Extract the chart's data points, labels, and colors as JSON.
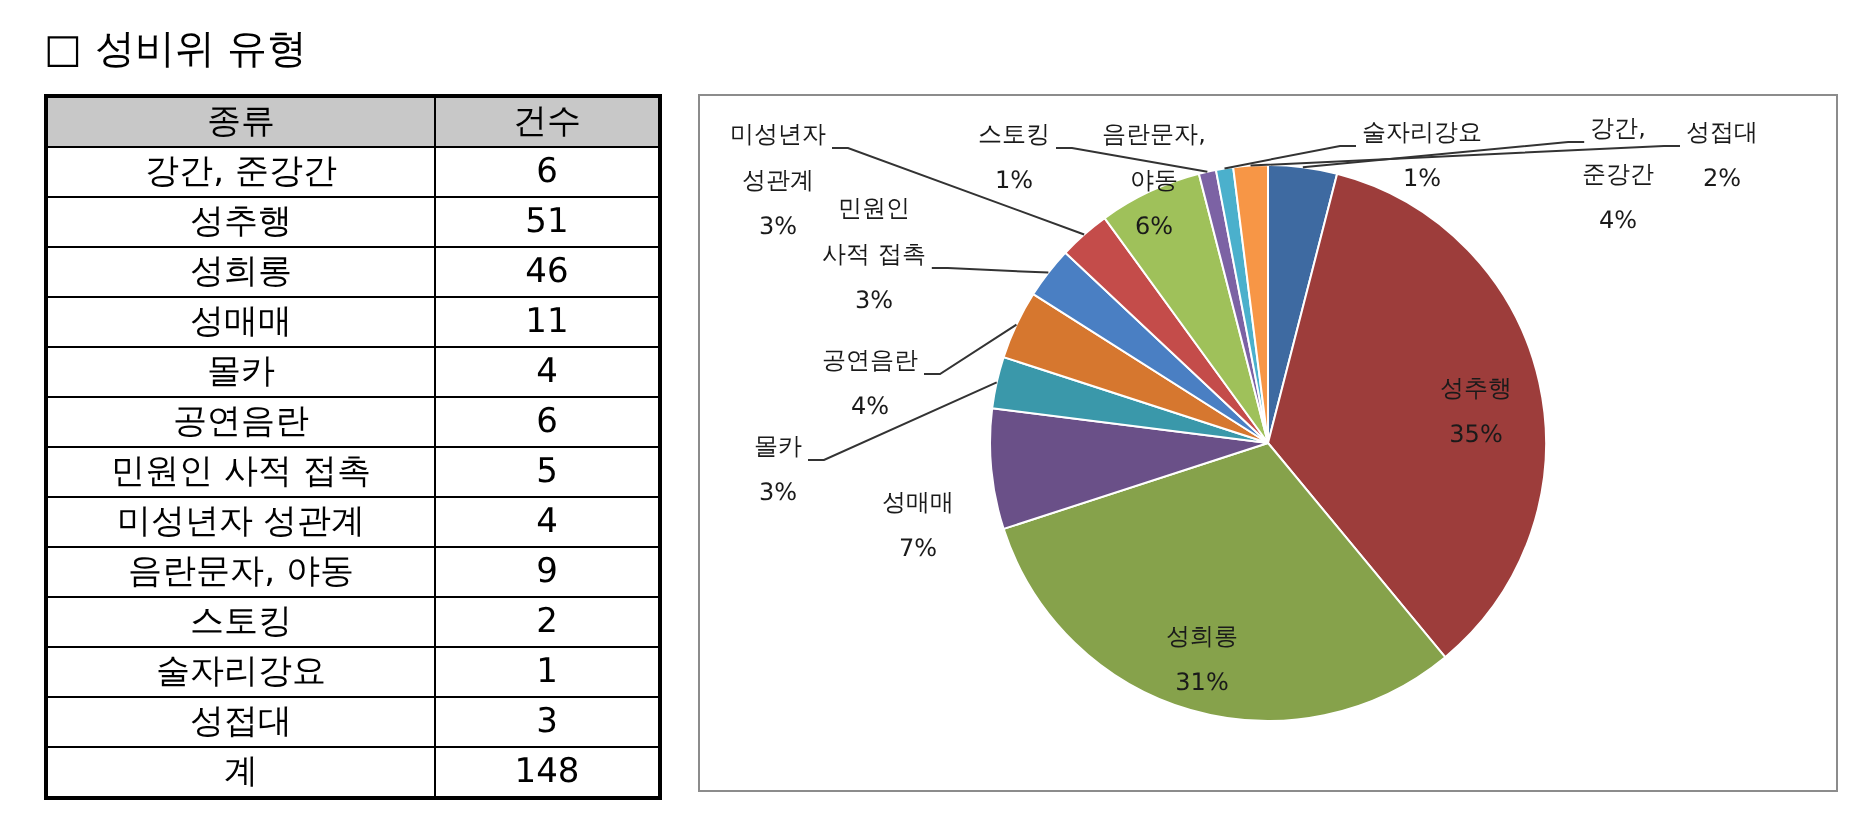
{
  "chart_data": [
    {
      "type": "other",
      "title": "□ 성비위 유형",
      "categories": [
        "강간, 준강간",
        "성추행",
        "성희롱",
        "성매매",
        "몰카",
        "공연음란",
        "민원인 사적 접촉",
        "미성년자 성관계",
        "음란문자, 야동",
        "스토킹",
        "술자리강요",
        "성접대"
      ],
      "values": [
        6,
        51,
        46,
        11,
        4,
        6,
        5,
        4,
        9,
        2,
        1,
        3
      ],
      "data_labels": true,
      "totals": [
        "148"
      ],
      "annotations": [
        "종류",
        "건수",
        "계"
      ]
    },
    {
      "type": "pie",
      "categories": [
        "강간, 준강간",
        "성추행",
        "성희롱",
        "성매매",
        "몰카",
        "공연음란",
        "민원인 사적 접촉",
        "미성년자 성관계",
        "음란문자, 야동",
        "스토킹",
        "술자리강요",
        "성접대"
      ],
      "values": [
        4,
        35,
        31,
        7,
        3,
        4,
        3,
        3,
        6,
        1,
        1,
        2
      ],
      "colors": [
        "#3e6aa1",
        "#9d3d3b",
        "#86a24b",
        "#6a5088",
        "#3a98aa",
        "#d6772f",
        "#4a7fc3",
        "#c44c4a",
        "#9fc15a",
        "#7c62a4",
        "#4bb0cc",
        "#f79646"
      ],
      "value_labels": [
        "4%",
        "35%",
        "31%",
        "7%",
        "3%",
        "4%",
        "3%",
        "3%",
        "6%",
        "1%",
        "1%",
        "2%"
      ]
    }
  ]
}
